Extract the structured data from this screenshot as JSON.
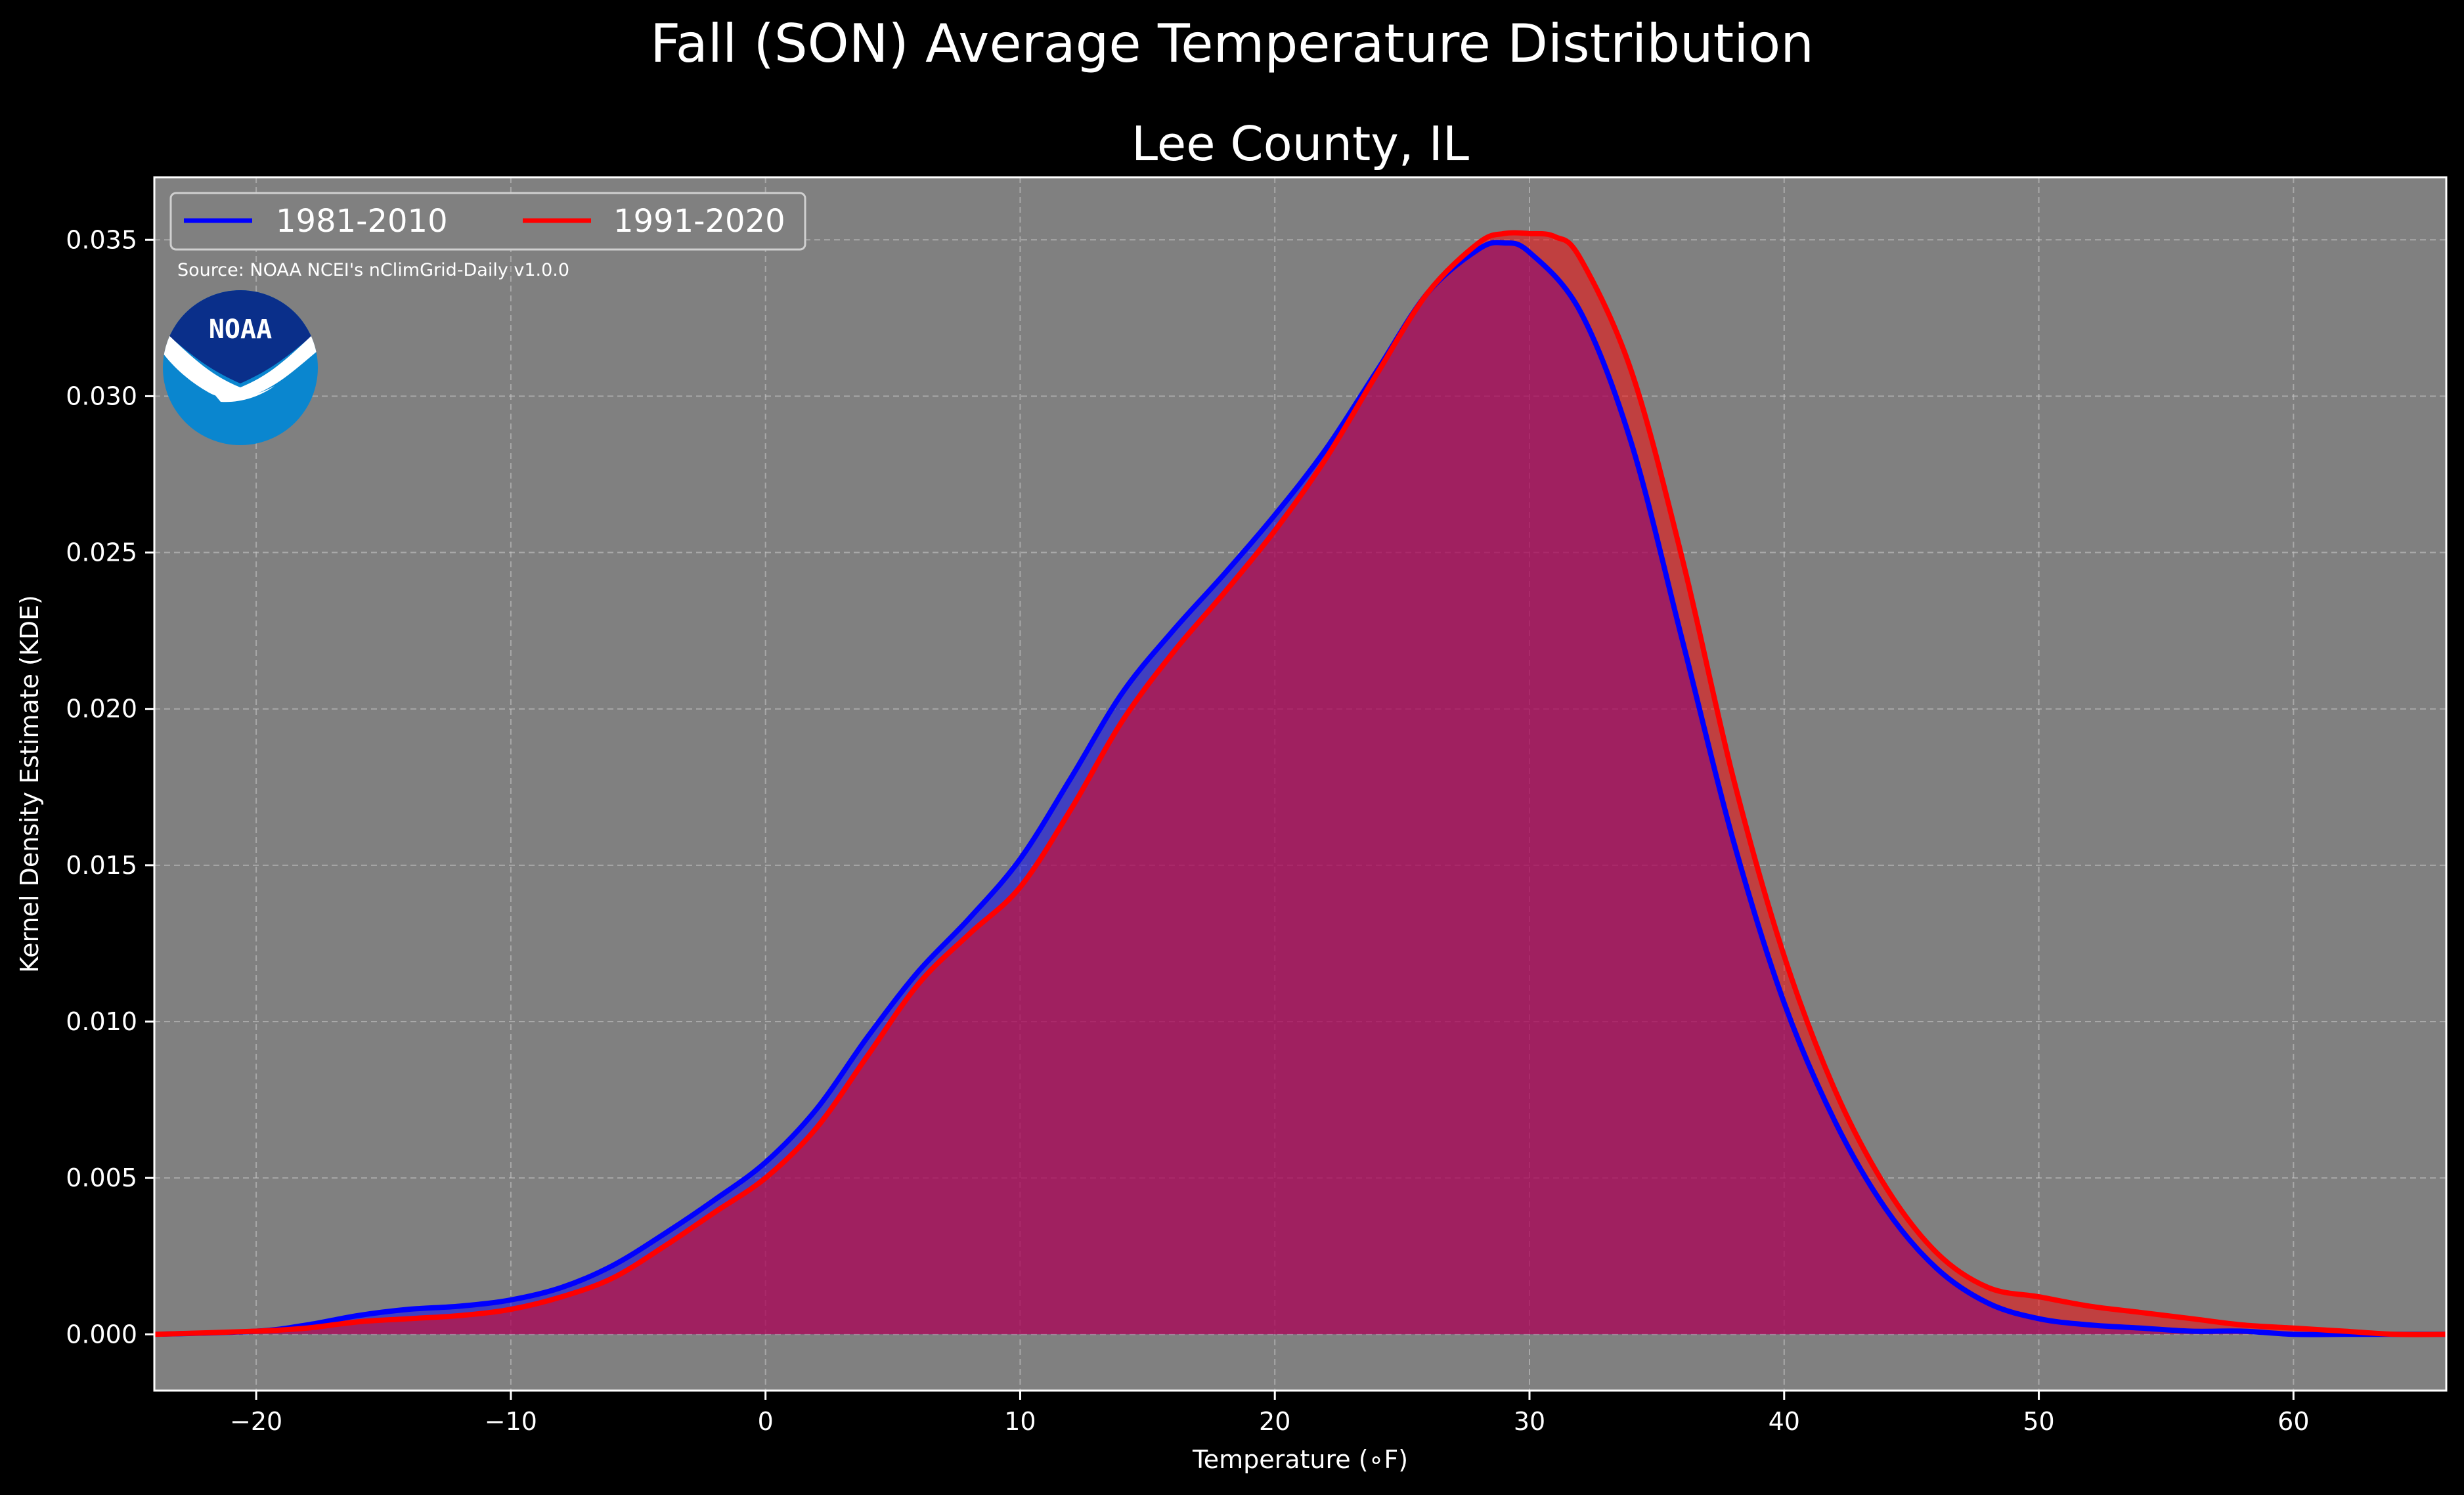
{
  "figure": {
    "suptitle": "Fall (SON) Average Temperature Distribution",
    "source_note": "Source: NOAA NCEI's nClimGrid-Daily v1.0.0",
    "logo_text": "NOAA"
  },
  "colors": {
    "background": "#000000",
    "plot_background": "#808080",
    "series_1981_2010": "#0000ff",
    "series_1991_2020": "#ff0000",
    "logo_dark_blue": "#0a2f8a",
    "logo_light_blue": "#0a86cf"
  },
  "chart_data": {
    "type": "area",
    "title": "Lee County, IL",
    "xlabel": "Temperature (∘F)",
    "ylabel": "Kernel Density Estimate (KDE)",
    "xlim": [
      -24,
      66
    ],
    "ylim": [
      -0.0018,
      0.037
    ],
    "grid": true,
    "legend_position": "top-left",
    "x_ticks": [
      -20,
      -10,
      0,
      10,
      20,
      30,
      40,
      50,
      60
    ],
    "x_tick_labels": [
      "−20",
      "−10",
      "0",
      "10",
      "20",
      "30",
      "40",
      "50",
      "60"
    ],
    "y_ticks": [
      0,
      0.005,
      0.01,
      0.015,
      0.02,
      0.025,
      0.03,
      0.035
    ],
    "y_tick_labels": [
      "0.000",
      "0.005",
      "0.010",
      "0.015",
      "0.020",
      "0.025",
      "0.030",
      "0.035"
    ],
    "series": [
      {
        "name": "1981-2010",
        "color": "#0000ff",
        "x": [
          -24,
          -20,
          -18,
          -16,
          -14,
          -12,
          -10,
          -8,
          -6,
          -4,
          -2,
          0,
          2,
          4,
          6,
          8,
          10,
          12,
          14,
          16,
          18,
          20,
          22,
          24,
          26,
          28,
          29,
          30,
          32,
          34,
          36,
          38,
          40,
          42,
          44,
          46,
          48,
          50,
          52,
          54,
          56,
          58,
          60,
          62,
          64,
          66
        ],
        "y": [
          0.0,
          0.0001,
          0.0003,
          0.0006,
          0.0008,
          0.0009,
          0.0011,
          0.0015,
          0.0022,
          0.0032,
          0.0043,
          0.0055,
          0.0072,
          0.0095,
          0.0116,
          0.0133,
          0.0152,
          0.0178,
          0.0205,
          0.0225,
          0.0243,
          0.0262,
          0.0283,
          0.0308,
          0.0333,
          0.0347,
          0.0349,
          0.0346,
          0.0327,
          0.0285,
          0.0222,
          0.0158,
          0.0106,
          0.0068,
          0.004,
          0.0021,
          0.001,
          0.0005,
          0.0003,
          0.0002,
          0.0001,
          0.0001,
          0.0,
          0.0,
          0.0,
          0.0
        ]
      },
      {
        "name": "1991-2020",
        "color": "#ff0000",
        "x": [
          -24,
          -20,
          -18,
          -16,
          -14,
          -12,
          -10,
          -8,
          -6,
          -4,
          -2,
          0,
          2,
          4,
          6,
          8,
          10,
          12,
          14,
          16,
          18,
          20,
          22,
          24,
          26,
          28,
          29,
          30,
          31,
          32,
          34,
          36,
          38,
          40,
          42,
          44,
          46,
          48,
          50,
          52,
          54,
          56,
          58,
          60,
          62,
          64,
          66
        ],
        "y": [
          0.0,
          0.0001,
          0.0002,
          0.0004,
          0.0005,
          0.0006,
          0.0008,
          0.0012,
          0.0018,
          0.0028,
          0.0039,
          0.005,
          0.0066,
          0.0089,
          0.0112,
          0.0128,
          0.0143,
          0.0168,
          0.0196,
          0.0218,
          0.0237,
          0.0257,
          0.028,
          0.0307,
          0.0333,
          0.0349,
          0.0352,
          0.0352,
          0.0351,
          0.0344,
          0.0308,
          0.0248,
          0.0178,
          0.0121,
          0.0078,
          0.0047,
          0.0026,
          0.0015,
          0.0012,
          0.0009,
          0.0007,
          0.0005,
          0.0003,
          0.0002,
          0.0001,
          0.0,
          0.0
        ]
      }
    ]
  }
}
